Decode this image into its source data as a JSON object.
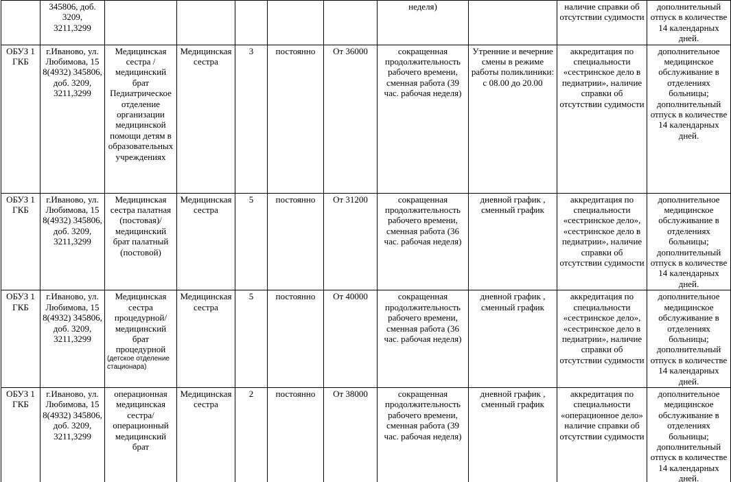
{
  "table": {
    "rows": [
      [
        null,
        "345806, доб. 3209, 3211,3299",
        null,
        null,
        null,
        null,
        null,
        "неделя)",
        null,
        "наличие справки об отсутствии судимости",
        "дополнительный отпуск в количестве 14 календарных дней."
      ],
      [
        "ОБУЗ 1 ГКБ",
        "г.Иваново, ул. Любимова, 15 8(4932) 345806, доб. 3209, 3211,3299",
        "Медицинская сестра /медицинский брат Педиатрическое отделение организации медицинской помощи детям в образовательных учреждениях",
        "Медицинская сестра",
        "3",
        "постоянно",
        "От 36000",
        "сокращенная продолжительность рабочего времени, сменная работа (39 час. рабочая неделя)",
        "Утренние и вечерние смены в режиме работы поликлиники: с 08.00 до 20.00",
        "аккредитация по специальности «сестринское дело в педиатрии», наличие справки об отсутствии судимости",
        "дополнительное медицинское обслуживание в отделениях больницы; дополнительный отпуск в количестве 14 календарных дней."
      ],
      [
        "ОБУЗ 1 ГКБ",
        "г.Иваново, ул. Любимова, 15 8(4932) 345806, доб. 3209, 3211,3299",
        "Медицинская сестра палатная (постовая)/ медицинский брат палатный (постовой)",
        "Медицинская сестра",
        "5",
        "постоянно",
        "От 31200",
        "сокращенная продолжительность рабочего времени, сменная работа (36 час. рабочая неделя)",
        "дневной график , сменный график",
        "аккредитация по специальности «сестринское дело», «сестринское дело в педиатрии», наличие справки об отсутствии судимости",
        "дополнительное медицинское обслуживание в отделениях больницы; дополнительный отпуск в количестве 14 календарных дней."
      ],
      [
        "ОБУЗ 1 ГКБ",
        "г.Иваново, ул. Любимова, 15 8(4932) 345806, доб. 3209, 3211,3299",
        [
          "Медицинская сестра процедурной/ медицинский брат процедурной",
          "(детское отделение стационара)"
        ],
        "Медицинская сестра",
        "5",
        "постоянно",
        "От 40000",
        "сокращенная продолжительность рабочего времени, сменная работа (36 час. рабочая неделя)",
        "дневной график , сменный график",
        "аккредитация по специальности «сестринское дело», «сестринское дело в педиатрии», наличие справки об отсутствии судимости",
        "дополнительное медицинское обслуживание в отделениях больницы; дополнительный отпуск в количестве 14 календарных дней."
      ],
      [
        "ОБУЗ 1 ГКБ",
        "г.Иваново, ул. Любимова, 15 8(4932) 345806, доб. 3209, 3211,3299",
        "операционная медицинская сестра/ операционный медицинский брат",
        "Медицинская сестра",
        "2",
        "постоянно",
        "От 38000",
        "сокращенная продолжительность рабочего времени, сменная работа (39 час. рабочая неделя)",
        "дневной график , сменный график",
        "аккредитация по специальности «операционное дело» наличие справки об отсутствии судимости",
        "дополнительное медицинское обслуживание в отделениях больницы; дополнительный отпуск в количестве 14 календарных дней."
      ]
    ]
  }
}
